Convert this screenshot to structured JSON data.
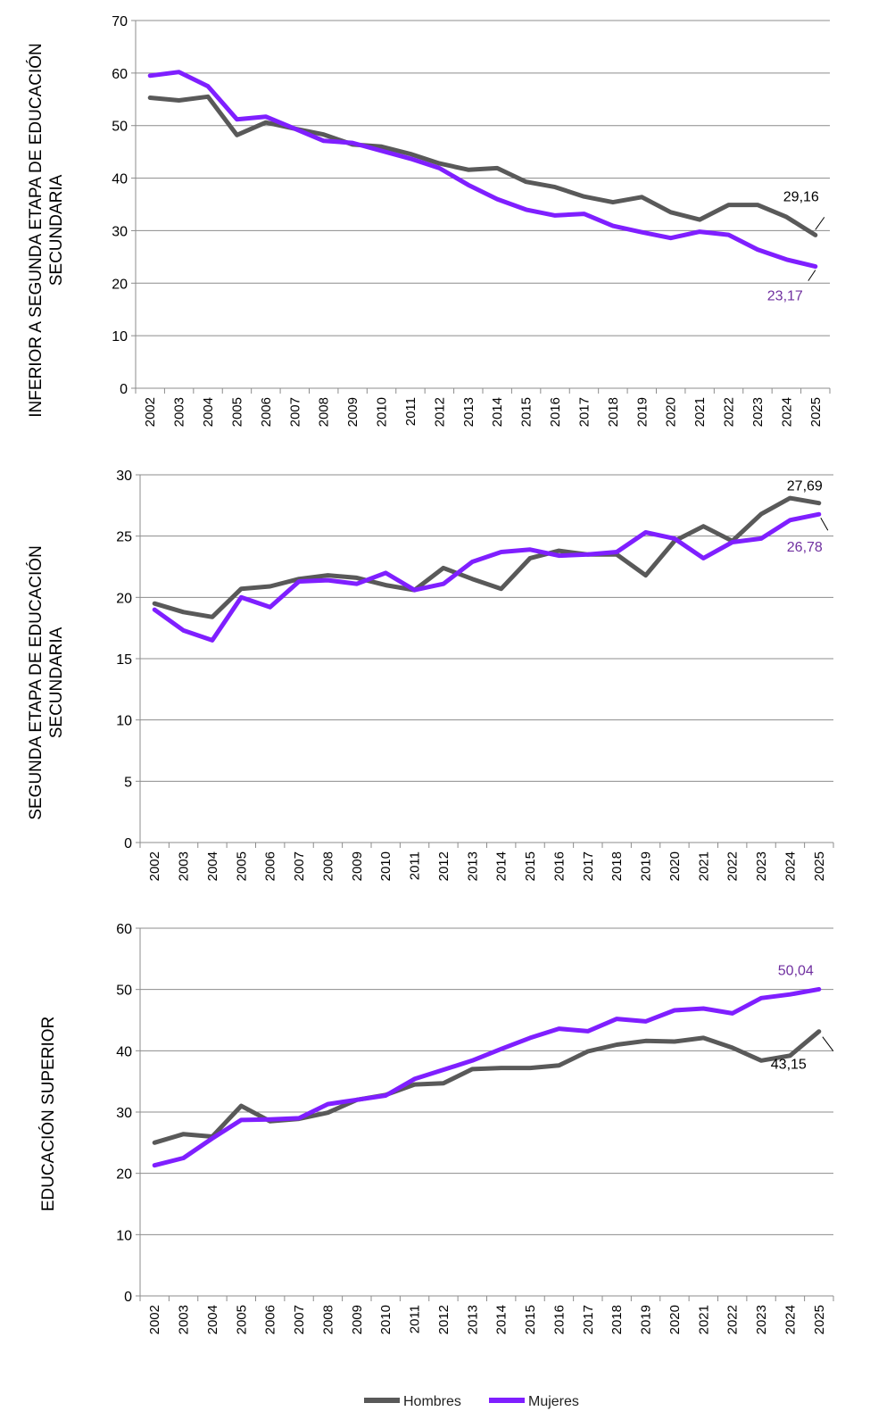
{
  "chart_data": [
    {
      "type": "line",
      "ylabel": "INFERIOR A SEGUNDA ETAPA DE EDUCACIÓN SECUNDARIA",
      "ylim": [
        0,
        70
      ],
      "yticks": [
        0,
        10,
        20,
        30,
        40,
        50,
        60,
        70
      ],
      "x": [
        "2002",
        "2003",
        "2004",
        "2005",
        "2006",
        "2007",
        "2008",
        "2009",
        "2010",
        "2011",
        "2012",
        "2013",
        "2014",
        "2015",
        "2016",
        "2017",
        "2018",
        "2019",
        "2020",
        "2021",
        "2022",
        "2023",
        "2024",
        "2025"
      ],
      "grid": "horizontal",
      "series": [
        {
          "name": "Hombres",
          "color": "#595959",
          "values": [
            55.3,
            54.8,
            55.5,
            48.2,
            50.6,
            49.4,
            48.3,
            46.4,
            46.0,
            44.6,
            42.8,
            41.6,
            41.9,
            39.3,
            38.3,
            36.5,
            35.4,
            36.4,
            33.5,
            32.1,
            34.9,
            34.9,
            32.6,
            29.16
          ],
          "end_label": "29,16"
        },
        {
          "name": "Mujeres",
          "color": "#7F1FFF",
          "values": [
            59.5,
            60.2,
            57.5,
            51.2,
            51.7,
            49.4,
            47.1,
            46.7,
            45.2,
            43.7,
            41.9,
            38.7,
            36.0,
            34.0,
            32.9,
            33.2,
            30.9,
            29.7,
            28.6,
            29.8,
            29.2,
            26.4,
            24.5,
            23.17
          ],
          "end_label": "23,17"
        }
      ]
    },
    {
      "type": "line",
      "ylabel": "SEGUNDA ETAPA DE EDUCACIÓN SECUNDARIA",
      "ylim": [
        0,
        30
      ],
      "yticks": [
        0,
        5,
        10,
        15,
        20,
        25,
        30
      ],
      "x": [
        "2002",
        "2003",
        "2004",
        "2005",
        "2006",
        "2007",
        "2008",
        "2009",
        "2010",
        "2011",
        "2012",
        "2013",
        "2014",
        "2015",
        "2016",
        "2017",
        "2018",
        "2019",
        "2020",
        "2021",
        "2022",
        "2023",
        "2024",
        "2025"
      ],
      "grid": "horizontal",
      "series": [
        {
          "name": "Hombres",
          "color": "#595959",
          "values": [
            19.5,
            18.8,
            18.4,
            20.7,
            20.9,
            21.5,
            21.8,
            21.6,
            21.0,
            20.6,
            22.4,
            21.5,
            20.7,
            23.2,
            23.8,
            23.5,
            23.5,
            21.8,
            24.6,
            25.8,
            24.6,
            26.8,
            28.1,
            27.69
          ],
          "end_label": "27,69"
        },
        {
          "name": "Mujeres",
          "color": "#7F1FFF",
          "values": [
            19.0,
            17.3,
            16.5,
            20.0,
            19.2,
            21.3,
            21.4,
            21.1,
            22.0,
            20.6,
            21.1,
            22.9,
            23.7,
            23.9,
            23.4,
            23.5,
            23.7,
            25.3,
            24.8,
            23.2,
            24.5,
            24.8,
            26.3,
            26.78
          ],
          "end_label": "26,78"
        }
      ]
    },
    {
      "type": "line",
      "ylabel": "EDUCACIÓN SUPERIOR",
      "ylim": [
        0,
        60
      ],
      "yticks": [
        0,
        10,
        20,
        30,
        40,
        50,
        60
      ],
      "x": [
        "2002",
        "2003",
        "2004",
        "2005",
        "2006",
        "2007",
        "2008",
        "2009",
        "2010",
        "2011",
        "2012",
        "2013",
        "2014",
        "2015",
        "2016",
        "2017",
        "2018",
        "2019",
        "2020",
        "2021",
        "2022",
        "2023",
        "2024",
        "2025"
      ],
      "grid": "horizontal",
      "series": [
        {
          "name": "Hombres",
          "color": "#595959",
          "values": [
            25.0,
            26.4,
            26.0,
            31.0,
            28.5,
            28.9,
            29.9,
            32.0,
            32.8,
            34.5,
            34.7,
            37.0,
            37.2,
            37.2,
            37.6,
            39.9,
            41.0,
            41.6,
            41.5,
            42.1,
            40.5,
            38.4,
            39.2,
            43.15
          ],
          "end_label": "43,15"
        },
        {
          "name": "Mujeres",
          "color": "#7F1FFF",
          "values": [
            21.3,
            22.5,
            25.7,
            28.7,
            28.8,
            29.0,
            31.3,
            32.0,
            32.7,
            35.4,
            36.9,
            38.4,
            40.3,
            42.1,
            43.6,
            43.2,
            45.2,
            44.8,
            46.6,
            46.9,
            46.1,
            48.6,
            49.2,
            50.04
          ],
          "end_label": "50,04"
        }
      ]
    }
  ],
  "legend": {
    "position": "bottom",
    "items": [
      {
        "label": "Hombres",
        "color": "#595959"
      },
      {
        "label": "Mujeres",
        "color": "#7F1FFF"
      }
    ]
  }
}
